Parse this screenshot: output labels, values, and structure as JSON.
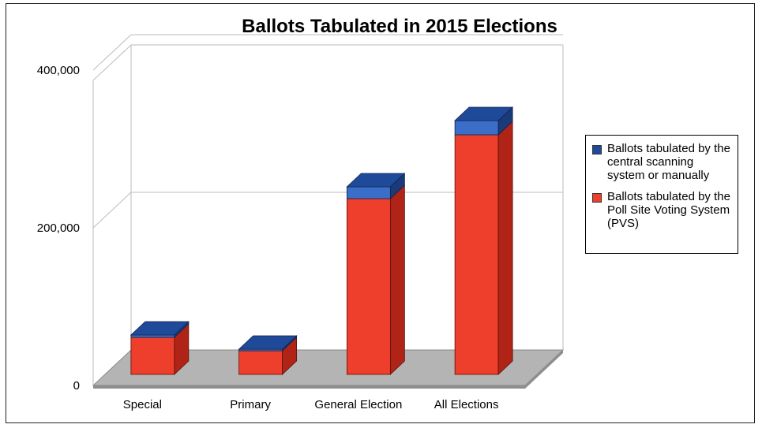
{
  "chart_data": {
    "type": "bar",
    "stacked": true,
    "three_d": true,
    "title": "Ballots Tabulated in 2015 Elections",
    "xlabel": "",
    "ylabel": "",
    "categories": [
      "Special",
      "Primary",
      "General Election",
      "All Elections"
    ],
    "series": [
      {
        "name": "Ballots tabulated by the Poll Site Voting System (PVS)",
        "color": "#ee3f2c",
        "values": [
          47000,
          30000,
          223000,
          304000
        ]
      },
      {
        "name": "Ballots tabulated by the central scanning system or manually",
        "color": "#1f4a99",
        "values": [
          3000,
          2000,
          15000,
          18000
        ]
      }
    ],
    "yticks": [
      0,
      200000,
      400000
    ],
    "ytick_labels": [
      "0",
      "200,000",
      "400,000"
    ],
    "ylim": [
      0,
      400000
    ],
    "grid": true,
    "legend_position": "right"
  },
  "legend": {
    "items": [
      {
        "label": "Ballots tabulated by the central scanning system or manually",
        "color": "#1f4a99"
      },
      {
        "label": "Ballots tabulated by the Poll Site Voting System (PVS)",
        "color": "#ee3f2c"
      }
    ]
  }
}
